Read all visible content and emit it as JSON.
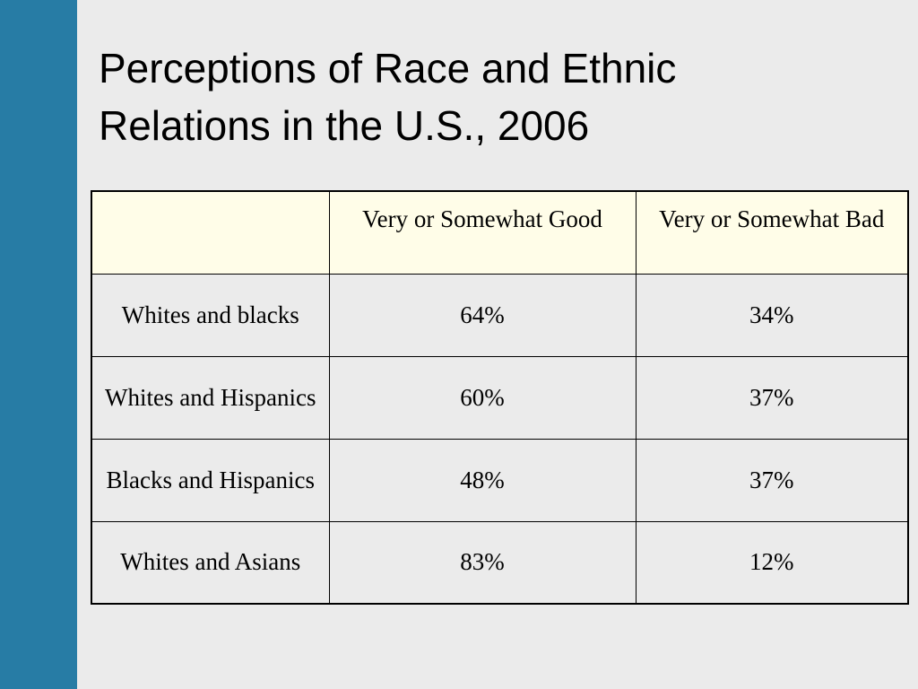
{
  "slide": {
    "title_line1": "Perceptions of Race and Ethnic",
    "title_line2": "Relations in the U.S., 2006",
    "accent_color": "#277ca5"
  },
  "table": {
    "columns": [
      "",
      "Very or Somewhat Good",
      "Very or Somewhat Bad"
    ],
    "rows": [
      {
        "label": "Whites and blacks",
        "good": "64%",
        "bad": "34%"
      },
      {
        "label": "Whites and Hispanics",
        "good": "60%",
        "bad": "37%"
      },
      {
        "label": "Blacks and Hispanics",
        "good": "48%",
        "bad": "37%"
      },
      {
        "label": "Whites and Asians",
        "good": "83%",
        "bad": "12%"
      }
    ]
  }
}
